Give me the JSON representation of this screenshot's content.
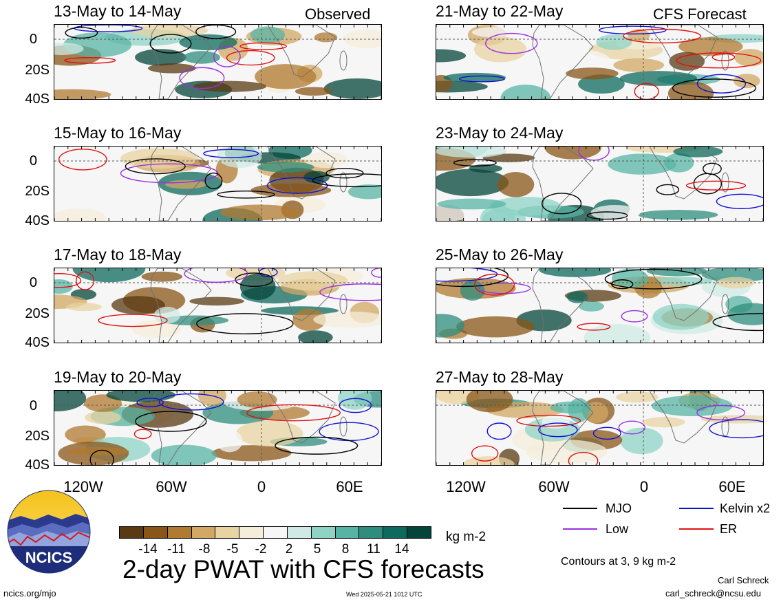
{
  "header": {
    "observed_label": "Observed",
    "forecast_label": "CFS Forecast"
  },
  "panels_left": [
    {
      "title": "13-May to 14-May"
    },
    {
      "title": "15-May to 16-May"
    },
    {
      "title": "17-May to 18-May"
    },
    {
      "title": "19-May to 20-May"
    }
  ],
  "panels_right": [
    {
      "title": "21-May to 22-May"
    },
    {
      "title": "23-May to 24-May"
    },
    {
      "title": "25-May to 26-May"
    },
    {
      "title": "27-May to 28-May"
    }
  ],
  "lat_labels": [
    "0",
    "20S",
    "40S"
  ],
  "lon_labels": [
    "120W",
    "60W",
    "0",
    "60E"
  ],
  "colorbar": {
    "colors": [
      "#5a3a12",
      "#8a5518",
      "#b07a30",
      "#d2a864",
      "#e8d3a2",
      "#f4edda",
      "#f6f6f6",
      "#cfeae4",
      "#8fd3c6",
      "#57b4a4",
      "#2e8d7e",
      "#0e6a5c",
      "#04453b"
    ],
    "labels": [
      "-14",
      "-11",
      "-8",
      "-5",
      "-2",
      "2",
      "5",
      "8",
      "11",
      "14"
    ],
    "unit": "kg m-2"
  },
  "legend": {
    "items": [
      {
        "label": "MJO",
        "color": "#000000"
      },
      {
        "label": "Kelvin x2",
        "color": "#1010d0"
      },
      {
        "label": "Low",
        "color": "#9a30e0"
      },
      {
        "label": "ER",
        "color": "#e01010"
      }
    ],
    "contours_note": "Contours at 3, 9 kg m-2"
  },
  "title": "2-day PWAT with CFS forecasts",
  "logo_text": "NCICS",
  "footer": {
    "url": "ncics.org/mjo",
    "timestamp": "Wed 2025-05-21 1012 UTC",
    "author": "Carl Schreck",
    "email": "carl_schreck@ncsu.edu"
  }
}
